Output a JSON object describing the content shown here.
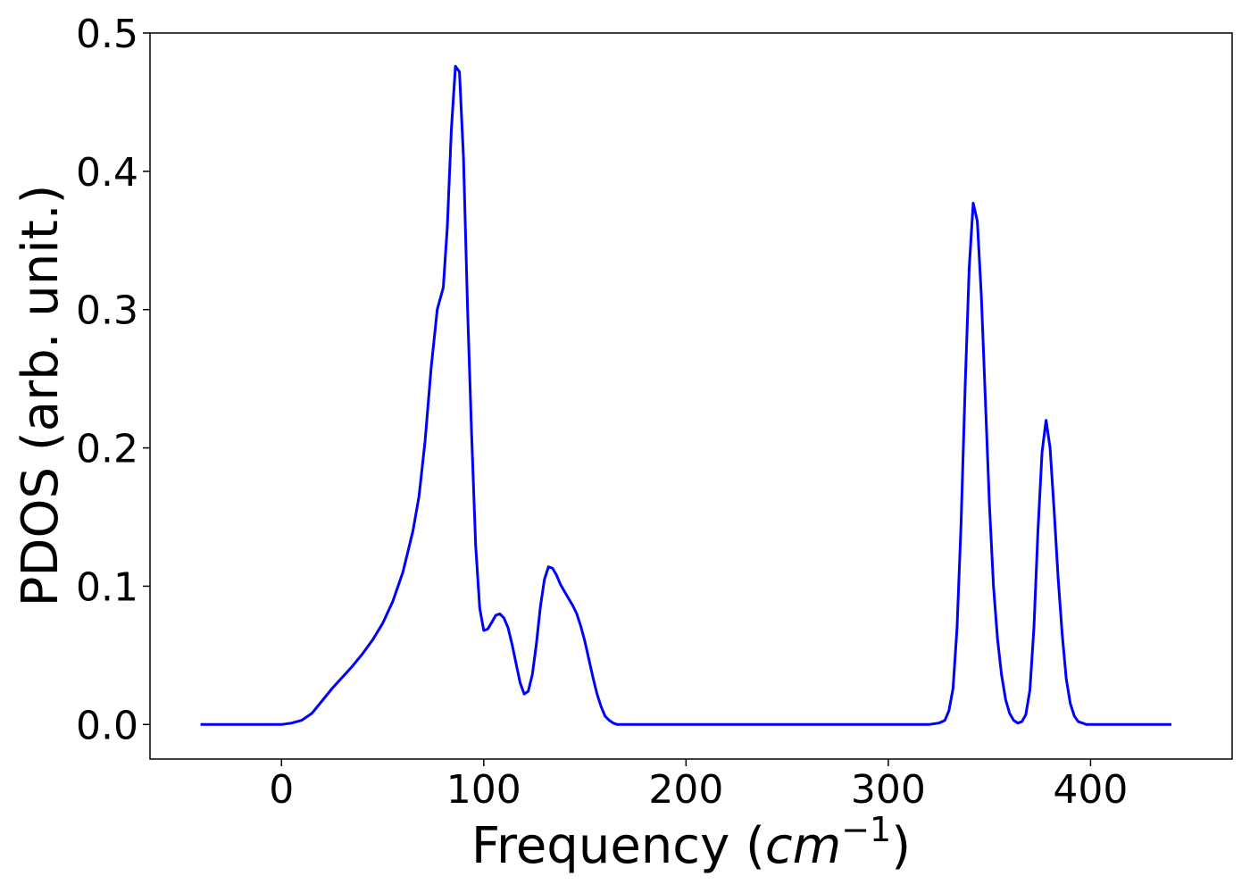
{
  "chart_data": {
    "type": "line",
    "title": "",
    "xlabel": "Frequency (cm⁻¹)",
    "xlabel_parts": {
      "prefix": "Frequency (",
      "unit_base": "cm",
      "unit_exp": "−1",
      "suffix": ")"
    },
    "ylabel": "PDOS (arb. unit.)",
    "xlim": [
      -65,
      470
    ],
    "ylim": [
      -0.025,
      0.5
    ],
    "xticks": [
      0,
      100,
      200,
      300,
      400
    ],
    "xtick_labels": [
      "0",
      "100",
      "200",
      "300",
      "400"
    ],
    "yticks": [
      0.0,
      0.1,
      0.2,
      0.3,
      0.4,
      0.5
    ],
    "ytick_labels": [
      "0.0",
      "0.1",
      "0.2",
      "0.3",
      "0.4",
      "0.5"
    ],
    "grid": false,
    "line_color": "#0000ff",
    "series": [
      {
        "x": [
          -40,
          -30,
          -20,
          -10,
          0,
          5,
          10,
          15,
          20,
          25,
          30,
          35,
          40,
          45,
          50,
          55,
          60,
          65,
          68,
          71,
          74,
          77,
          80,
          82,
          84,
          86,
          88,
          90,
          92,
          94,
          96,
          98,
          100,
          102,
          104,
          106,
          108,
          110,
          112,
          114,
          116,
          118,
          120,
          122,
          124,
          126,
          128,
          130,
          132,
          134,
          136,
          138,
          140,
          142,
          144,
          146,
          148,
          150,
          152,
          154,
          156,
          158,
          160,
          162,
          164,
          166,
          168,
          170,
          172,
          174,
          176,
          180,
          200,
          250,
          300,
          320,
          325,
          328,
          330,
          332,
          334,
          336,
          338,
          340,
          342,
          344,
          346,
          348,
          350,
          352,
          354,
          356,
          358,
          360,
          362,
          364,
          366,
          368,
          370,
          372,
          374,
          376,
          378,
          380,
          382,
          384,
          386,
          388,
          390,
          392,
          394,
          396,
          398,
          400,
          402,
          404,
          406,
          408,
          410,
          412,
          416,
          420,
          440
        ],
        "y": [
          0.0,
          0.0,
          0.0,
          0.0,
          0.0,
          0.001,
          0.003,
          0.008,
          0.017,
          0.026,
          0.034,
          0.042,
          0.051,
          0.061,
          0.073,
          0.089,
          0.11,
          0.14,
          0.165,
          0.205,
          0.258,
          0.3,
          0.316,
          0.36,
          0.43,
          0.476,
          0.472,
          0.41,
          0.3,
          0.21,
          0.13,
          0.084,
          0.068,
          0.069,
          0.074,
          0.079,
          0.08,
          0.077,
          0.07,
          0.058,
          0.044,
          0.03,
          0.022,
          0.024,
          0.036,
          0.058,
          0.085,
          0.105,
          0.114,
          0.113,
          0.108,
          0.101,
          0.096,
          0.091,
          0.086,
          0.08,
          0.071,
          0.06,
          0.047,
          0.034,
          0.022,
          0.013,
          0.006,
          0.003,
          0.001,
          0.0,
          0.0,
          0.0,
          0.0,
          0.0,
          0.0,
          0.0,
          0.0,
          0.0,
          0.0,
          0.0,
          0.001,
          0.003,
          0.01,
          0.026,
          0.07,
          0.145,
          0.245,
          0.33,
          0.377,
          0.364,
          0.31,
          0.235,
          0.16,
          0.1,
          0.062,
          0.036,
          0.018,
          0.008,
          0.003,
          0.001,
          0.002,
          0.007,
          0.025,
          0.07,
          0.14,
          0.197,
          0.22,
          0.2,
          0.155,
          0.105,
          0.065,
          0.033,
          0.015,
          0.006,
          0.002,
          0.001,
          0.0,
          0.0,
          0.0,
          0.0,
          0.0,
          0.0,
          0.0,
          0.0,
          0.0,
          0.0,
          0.0
        ]
      }
    ]
  }
}
